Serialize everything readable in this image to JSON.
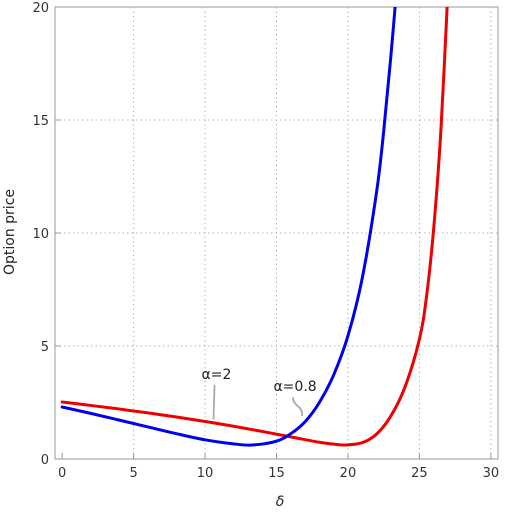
{
  "chart_data": {
    "type": "line",
    "title": "",
    "xlabel": "δ",
    "ylabel": "Option price",
    "xlim": [
      -0.5,
      30.5
    ],
    "ylim": [
      0,
      20
    ],
    "xticks": [
      0,
      5,
      10,
      15,
      20,
      25,
      30
    ],
    "yticks": [
      0,
      5,
      10,
      15,
      20
    ],
    "grid": true,
    "series": [
      {
        "name": "α=2",
        "color": "#0000ee",
        "x": [
          0,
          2,
          4,
          6,
          8,
          10,
          12,
          13.3,
          15,
          16,
          17,
          18,
          19,
          20,
          21,
          22,
          22.5,
          23,
          23.5
        ],
        "y": [
          2.3,
          2.02,
          1.72,
          1.42,
          1.12,
          0.85,
          0.67,
          0.62,
          0.79,
          1.12,
          1.65,
          2.5,
          3.72,
          5.45,
          8.0,
          11.8,
          14.5,
          17.8,
          21.5
        ]
      },
      {
        "name": "α=0.8",
        "color": "#ee0000",
        "x": [
          0,
          2,
          4,
          6,
          8,
          10,
          12,
          14,
          16,
          18,
          19,
          19.8,
          21,
          22,
          23,
          24,
          25,
          25.5,
          26,
          26.5,
          27
        ],
        "y": [
          2.52,
          2.37,
          2.21,
          2.04,
          1.86,
          1.66,
          1.45,
          1.22,
          0.98,
          0.74,
          0.66,
          0.62,
          0.72,
          1.1,
          1.9,
          3.2,
          5.3,
          7.2,
          10.2,
          14.5,
          20.8
        ]
      }
    ],
    "annotations": [
      {
        "text": "α=2",
        "x": 10.8,
        "y": 3.55,
        "point": [
          10.6,
          1.75
        ]
      },
      {
        "text": "α=0.8",
        "x": 16.3,
        "y": 3.0,
        "point": [
          16.8,
          1.9
        ]
      }
    ]
  }
}
